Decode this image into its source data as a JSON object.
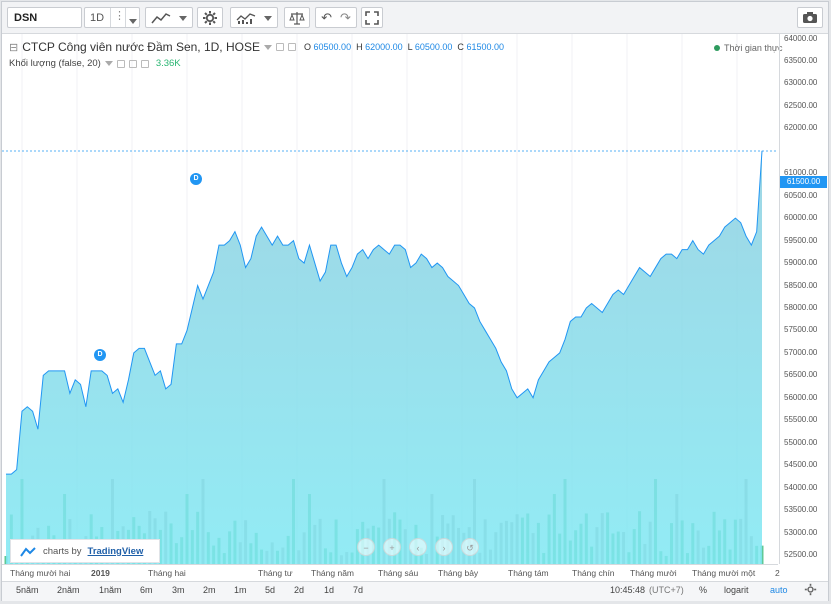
{
  "toolbar": {
    "symbol": "DSN",
    "interval": "1D",
    "icons": [
      "bar-style-icon",
      "settings-icon",
      "indicators-icon",
      "compare-icon",
      "undo-icon",
      "redo-icon",
      "fullscreen-icon",
      "camera-icon"
    ]
  },
  "legend": {
    "title": "CTCP Công viên nước Đầm Sen, 1D, HOSE",
    "o_label": "O",
    "o_value": "60500.00",
    "h_label": "H",
    "h_value": "62000.00",
    "l_label": "L",
    "l_value": "60500.00",
    "c_label": "C",
    "c_value": "61500.00",
    "volume_label": "Khối lượng (false, 20)",
    "volume_value": "3.36K",
    "realtime": "Thời gian thực"
  },
  "price_axis": {
    "labels": [
      "64000.00",
      "63500.00",
      "63000.00",
      "62500.00",
      "62000.00",
      "61000.00",
      "60500.00",
      "60000.00",
      "59500.00",
      "59000.00",
      "58500.00",
      "58000.00",
      "57500.00",
      "57000.00",
      "56500.00",
      "56000.00",
      "55500.00",
      "55000.00",
      "54500.00",
      "54000.00",
      "53500.00",
      "53000.00",
      "52500.00"
    ],
    "last_price": "61500.00"
  },
  "time_axis": {
    "labels": [
      "Tháng mười hai",
      "2019",
      "Tháng hai",
      "Tháng tư",
      "Tháng năm",
      "Tháng sáu",
      "Tháng bảy",
      "Tháng tám",
      "Tháng chín",
      "Tháng mười",
      "Tháng mười một",
      "2"
    ]
  },
  "events": [
    {
      "label": "D"
    },
    {
      "label": "D"
    }
  ],
  "watermark": {
    "prefix": "charts by",
    "brand": "TradingView"
  },
  "bottom": {
    "ranges": [
      "5năm",
      "2năm",
      "1năm",
      "6m",
      "3m",
      "2m",
      "1m",
      "5d",
      "2d",
      "1d",
      "7d",
      "1d"
    ],
    "clock": "10:45:48",
    "timezone": "(UTC+7)",
    "percent": "%",
    "log": "logarit",
    "auto": "auto"
  },
  "colors": {
    "line": "#2196f3",
    "fill_top": "#8ecfe0",
    "fill_bottom": "#7fe8f3",
    "volume_up": "#2bb673",
    "volume_down": "#9e9e9e",
    "last_price": "#2196f3"
  },
  "chart_data": {
    "type": "area",
    "series": [
      {
        "name": "DSN",
        "values": [
          54300,
          54300,
          54400,
          55700,
          55800,
          55700,
          55300,
          56500,
          56600,
          56600,
          56600,
          56600,
          56100,
          56400,
          56300,
          55800,
          56600,
          56600,
          56600,
          56500,
          56100,
          56200,
          55900,
          56400,
          57000,
          57100,
          57100,
          56800,
          56500,
          56600,
          56200,
          56300,
          57200,
          57200,
          57500,
          58000,
          58500,
          58200,
          58500,
          58800,
          59400,
          59400,
          59500,
          59700,
          59400,
          58900,
          59100,
          59600,
          59800,
          59600,
          59400,
          59600,
          59400,
          59400,
          59500,
          59100,
          59000,
          59400,
          59000,
          58600,
          58800,
          59400,
          59400,
          59000,
          58700,
          58900,
          59200,
          59300,
          59100,
          59300,
          59400,
          59300,
          59200,
          59400,
          59400,
          59300,
          58900,
          59000,
          59200,
          59100,
          58900,
          59000,
          58900,
          58700,
          58600,
          58500,
          58300,
          58100,
          58000,
          57700,
          57500,
          57300,
          57100,
          56800,
          56600,
          56200,
          56000,
          56100,
          56200,
          56000,
          56400,
          56600,
          56800,
          56900,
          57000,
          57300,
          57700,
          57800,
          57800,
          58000,
          58100,
          58000,
          57900,
          58100,
          58300,
          58400,
          58300,
          58500,
          58700,
          58900,
          58800,
          58700,
          58900,
          59100,
          59200,
          59200,
          59100,
          59300,
          59300,
          59500,
          59300,
          59200,
          59400,
          59500,
          59600,
          59800,
          59900,
          60000,
          59900,
          59600,
          59400,
          59700,
          61500
        ]
      }
    ],
    "x_range": [
      "Tháng mười hai",
      "2"
    ],
    "ylim": [
      52300,
      64100
    ],
    "volume": {
      "label": "Khối lượng",
      "last": "3.36K"
    }
  }
}
